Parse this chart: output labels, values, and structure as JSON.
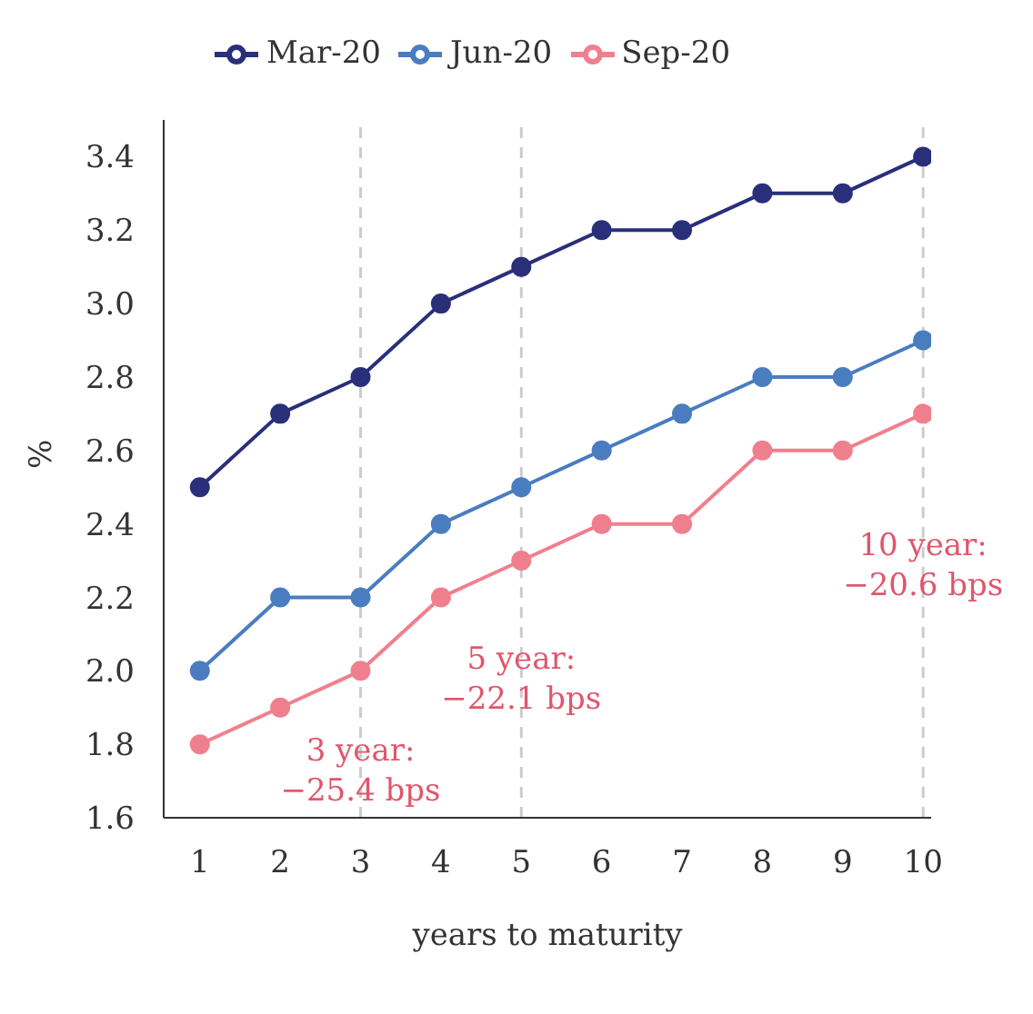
{
  "chart_data": {
    "type": "line",
    "xlabel": "years to maturity",
    "ylabel": "%",
    "x": [
      1,
      2,
      3,
      4,
      5,
      6,
      7,
      8,
      9,
      10
    ],
    "series": [
      {
        "name": "Mar-20",
        "color": "#2a2f7a",
        "values": [
          2.5,
          2.7,
          2.8,
          3.0,
          3.1,
          3.2,
          3.2,
          3.3,
          3.3,
          3.4
        ]
      },
      {
        "name": "Jun-20",
        "color": "#4a7cc0",
        "values": [
          2.0,
          2.2,
          2.2,
          2.4,
          2.5,
          2.6,
          2.7,
          2.8,
          2.8,
          2.9
        ]
      },
      {
        "name": "Sep-20",
        "color": "#f07f8e",
        "values": [
          1.8,
          1.9,
          2.0,
          2.2,
          2.3,
          2.4,
          2.4,
          2.6,
          2.6,
          2.7
        ]
      }
    ],
    "xlim": [
      0.55,
      10.1
    ],
    "xticks": [
      1,
      2,
      3,
      4,
      5,
      6,
      7,
      8,
      9,
      10
    ],
    "ylim": [
      1.6,
      3.5
    ],
    "yticks": [
      1.6,
      1.8,
      {
        "value": 2,
        "label": "2.0"
      },
      2.2,
      2.4,
      2.6,
      2.8,
      {
        "value": 3,
        "label": "3.0"
      },
      3.2,
      3.4
    ],
    "ref_lines": [
      {
        "axis": "x",
        "value": 3,
        "color": "#cccccc",
        "line_style": "dashed"
      },
      {
        "axis": "x",
        "value": 5,
        "color": "#cccccc",
        "line_style": "dashed"
      },
      {
        "axis": "x",
        "value": 10,
        "color": "#cccccc",
        "line_style": "dashed"
      }
    ],
    "annotations": [
      {
        "text": "3 year:\n−25.4 bps",
        "x": 3,
        "y": 1.72
      },
      {
        "text": "5 year:\n−22.1 bps",
        "x": 5,
        "y": 1.97
      },
      {
        "text": "10 year:\n−20.6 bps",
        "x": 10,
        "y": 2.28
      }
    ],
    "legend": "top",
    "grid": false,
    "marker": "circle",
    "line_style": "solid"
  }
}
